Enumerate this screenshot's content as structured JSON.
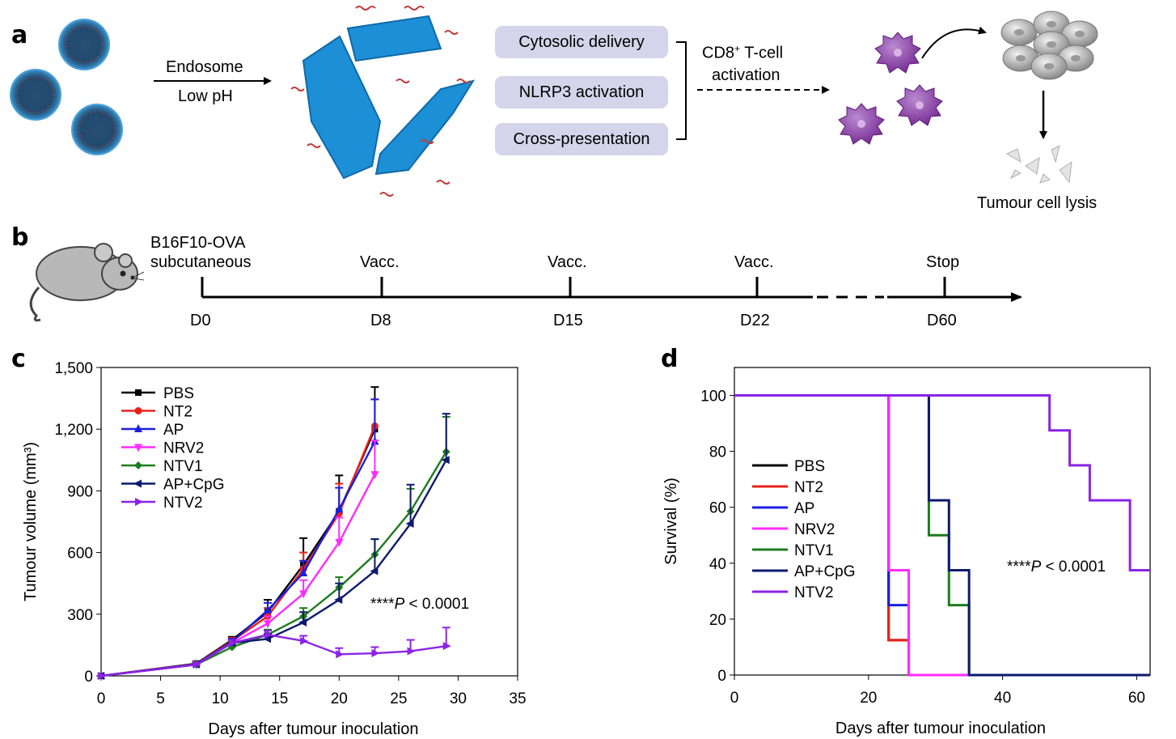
{
  "panel_a": {
    "letter": "a",
    "arrow_top": "Endosome",
    "arrow_bottom": "Low pH",
    "boxes": [
      "Cytosolic delivery",
      "NLRP3 activation",
      "Cross-presentation"
    ],
    "cd8_main": "CD8",
    "cd8_sup": "+",
    "cd8_rest": " T-cell",
    "cd8_line2": "activation",
    "lysis": "Tumour cell lysis"
  },
  "panel_b": {
    "letter": "b",
    "title_line1": "B16F10-OVA",
    "title_line2": "subcutaneous",
    "events": [
      "Vacc.",
      "Vacc.",
      "Vacc.",
      "Stop"
    ],
    "days": [
      "D0",
      "D8",
      "D15",
      "D22",
      "D60"
    ]
  },
  "panel_c": {
    "letter": "c",
    "pvalue_stars": "****",
    "pvalue_p": "P",
    "pvalue_rest": " < 0.0001"
  },
  "panel_d": {
    "letter": "d",
    "pvalue_stars": "****",
    "pvalue_p": "P",
    "pvalue_rest": " < 0.0001"
  },
  "colors": {
    "PBS": "#000000",
    "NT2": "#e8221b",
    "AP": "#1a1fe0",
    "NRV2": "#ff2bff",
    "NTV1": "#1d7c1d",
    "AP+CpG": "#0c1a6e",
    "NTV2": "#8c23e6",
    "box_fill": "#d4d4ea",
    "sheet_blue": "#1c8fd6",
    "cell_purple": "#8a3fa8"
  },
  "chart_data": [
    {
      "type": "line",
      "xlabel": "Days after tumour inoculation",
      "ylabel": "Tumour volume (mm³)",
      "xlim": [
        0,
        35
      ],
      "ylim": [
        0,
        1500
      ],
      "xticks": [
        "0",
        "5",
        "10",
        "15",
        "20",
        "25",
        "30",
        "35"
      ],
      "yticks": [
        "0",
        "300",
        "600",
        "900",
        "1,200",
        "1,500"
      ],
      "legend_position": "top-left",
      "series": [
        {
          "name": "PBS",
          "x": [
            0,
            8,
            11,
            14,
            17,
            20,
            23
          ],
          "y": [
            0,
            60,
            175,
            310,
            540,
            800,
            1200
          ],
          "err": [
            0,
            10,
            15,
            60,
            130,
            175,
            205
          ]
        },
        {
          "name": "NT2",
          "x": [
            0,
            8,
            11,
            14,
            17,
            20,
            23
          ],
          "y": [
            0,
            58,
            170,
            290,
            520,
            790,
            1215
          ],
          "err": [
            0,
            10,
            15,
            40,
            80,
            145,
            130
          ]
        },
        {
          "name": "AP",
          "x": [
            0,
            8,
            11,
            14,
            17,
            20,
            23
          ],
          "y": [
            0,
            57,
            165,
            320,
            500,
            810,
            1140
          ],
          "err": [
            0,
            10,
            15,
            35,
            60,
            105,
            205
          ]
        },
        {
          "name": "NRV2",
          "x": [
            0,
            8,
            11,
            14,
            17,
            20,
            23
          ],
          "y": [
            0,
            55,
            160,
            255,
            400,
            650,
            980
          ],
          "err": [
            0,
            10,
            15,
            35,
            65,
            120,
            165
          ]
        },
        {
          "name": "NTV1",
          "x": [
            0,
            8,
            11,
            14,
            17,
            20,
            23,
            26,
            29
          ],
          "y": [
            0,
            55,
            140,
            200,
            290,
            430,
            590,
            800,
            1090
          ],
          "err": [
            0,
            10,
            15,
            25,
            40,
            50,
            75,
            110,
            170
          ]
        },
        {
          "name": "AP+CpG",
          "x": [
            0,
            8,
            11,
            14,
            17,
            20,
            23,
            26,
            29
          ],
          "y": [
            0,
            55,
            160,
            180,
            260,
            370,
            510,
            740,
            1050
          ],
          "err": [
            0,
            10,
            15,
            25,
            50,
            80,
            155,
            190,
            225
          ]
        },
        {
          "name": "NTV2",
          "x": [
            0,
            8,
            11,
            14,
            17,
            20,
            23,
            26,
            29
          ],
          "y": [
            0,
            55,
            160,
            200,
            170,
            105,
            110,
            120,
            145
          ],
          "err": [
            0,
            10,
            15,
            20,
            25,
            30,
            30,
            55,
            90
          ]
        }
      ]
    },
    {
      "type": "line",
      "xlabel": "Days after tumour inoculation",
      "ylabel": "Survival (%)",
      "xlim": [
        0,
        62
      ],
      "ylim": [
        0,
        110
      ],
      "xticks": [
        "0",
        "20",
        "40",
        "60"
      ],
      "yticks": [
        "0",
        "20",
        "40",
        "60",
        "80",
        "100"
      ],
      "legend_position": "middle-left",
      "step": true,
      "series": [
        {
          "name": "PBS",
          "x": [
            0,
            23,
            23,
            26,
            26,
            62
          ],
          "y": [
            100,
            100,
            12.5,
            12.5,
            0,
            0
          ]
        },
        {
          "name": "NT2",
          "x": [
            0,
            23,
            23,
            26,
            26,
            62
          ],
          "y": [
            100,
            100,
            12.5,
            12.5,
            0,
            0
          ]
        },
        {
          "name": "AP",
          "x": [
            0,
            23,
            23,
            26,
            26,
            62
          ],
          "y": [
            100,
            100,
            25,
            25,
            0,
            0
          ]
        },
        {
          "name": "NRV2",
          "x": [
            0,
            23,
            23,
            26,
            26,
            62
          ],
          "y": [
            100,
            100,
            37.5,
            37.5,
            0,
            0
          ]
        },
        {
          "name": "NTV1",
          "x": [
            0,
            29,
            29,
            32,
            32,
            35,
            35,
            62
          ],
          "y": [
            100,
            100,
            50,
            50,
            25,
            25,
            0,
            0
          ]
        },
        {
          "name": "AP+CpG",
          "x": [
            0,
            29,
            29,
            32,
            32,
            35,
            35,
            62
          ],
          "y": [
            100,
            100,
            62.5,
            62.5,
            37.5,
            37.5,
            0,
            0
          ]
        },
        {
          "name": "NTV2",
          "x": [
            0,
            47,
            47,
            50,
            50,
            53,
            53,
            59,
            59,
            62
          ],
          "y": [
            100,
            100,
            87.5,
            87.5,
            75,
            75,
            62.5,
            62.5,
            37.5,
            37.5
          ]
        }
      ]
    }
  ]
}
